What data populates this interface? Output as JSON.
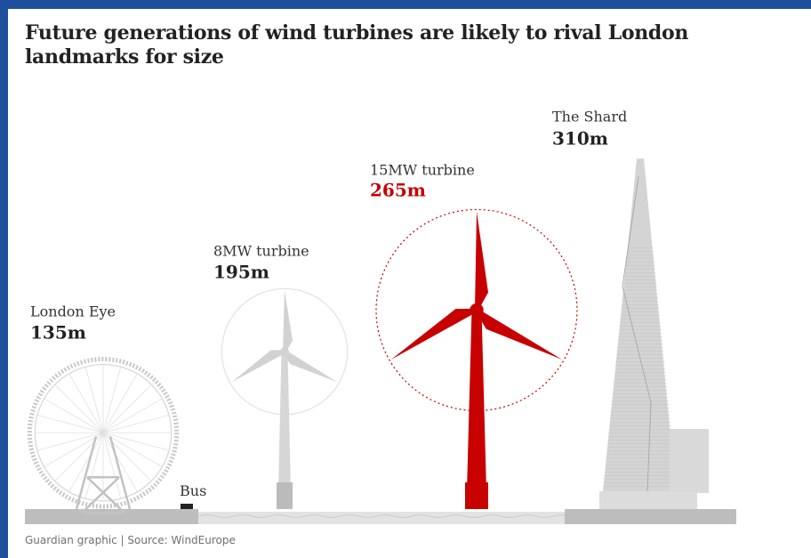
{
  "title": "Future generations of wind turbines are likely to rival London landmarks for size",
  "source": "Guardian graphic | Source: WindEurope",
  "colors": {
    "highlight": "#c70000",
    "neutral": "#cfcfcf",
    "neutral_dark": "#b8b8b8",
    "ground": "#bdbdbd",
    "frame": "#1d4f9c"
  },
  "chart_data": {
    "type": "bar",
    "categories": [
      "London Eye",
      "8MW turbine",
      "15MW turbine",
      "The Shard"
    ],
    "values": [
      135,
      195,
      265,
      310
    ],
    "unit": "m",
    "value_labels": [
      "135m",
      "195m",
      "265m",
      "310m"
    ],
    "highlight": "15MW turbine",
    "annotations": [
      {
        "label": "Bus"
      }
    ]
  }
}
